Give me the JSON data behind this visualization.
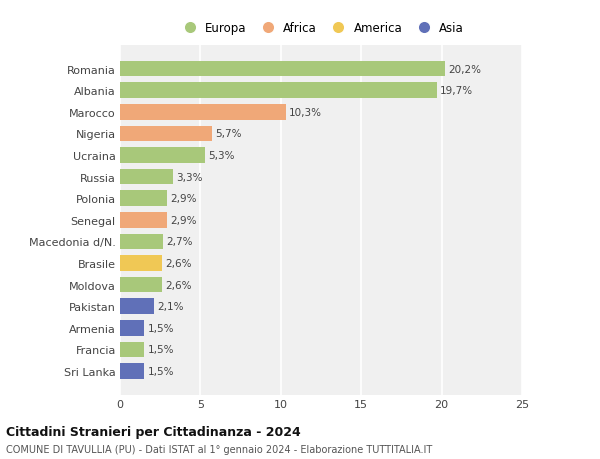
{
  "categories": [
    "Romania",
    "Albania",
    "Marocco",
    "Nigeria",
    "Ucraina",
    "Russia",
    "Polonia",
    "Senegal",
    "Macedonia d/N.",
    "Brasile",
    "Moldova",
    "Pakistan",
    "Armenia",
    "Francia",
    "Sri Lanka"
  ],
  "values": [
    20.2,
    19.7,
    10.3,
    5.7,
    5.3,
    3.3,
    2.9,
    2.9,
    2.7,
    2.6,
    2.6,
    2.1,
    1.5,
    1.5,
    1.5
  ],
  "labels": [
    "20,2%",
    "19,7%",
    "10,3%",
    "5,7%",
    "5,3%",
    "3,3%",
    "2,9%",
    "2,9%",
    "2,7%",
    "2,6%",
    "2,6%",
    "2,1%",
    "1,5%",
    "1,5%",
    "1,5%"
  ],
  "colors": [
    "#a8c87a",
    "#a8c87a",
    "#f0a878",
    "#f0a878",
    "#a8c87a",
    "#a8c87a",
    "#a8c87a",
    "#f0a878",
    "#a8c87a",
    "#f0c855",
    "#a8c87a",
    "#6070b8",
    "#6070b8",
    "#a8c87a",
    "#6070b8"
  ],
  "legend_labels": [
    "Europa",
    "Africa",
    "America",
    "Asia"
  ],
  "legend_colors": [
    "#a8c87a",
    "#f0a878",
    "#f0c855",
    "#6070b8"
  ],
  "title": "Cittadini Stranieri per Cittadinanza - 2024",
  "subtitle": "COMUNE DI TAVULLIA (PU) - Dati ISTAT al 1° gennaio 2024 - Elaborazione TUTTITALIA.IT",
  "xlim": [
    0,
    25
  ],
  "xticks": [
    0,
    5,
    10,
    15,
    20,
    25
  ],
  "bg_color": "#ffffff",
  "plot_bg_color": "#f0f0f0",
  "grid_color": "#ffffff",
  "bar_height": 0.72
}
